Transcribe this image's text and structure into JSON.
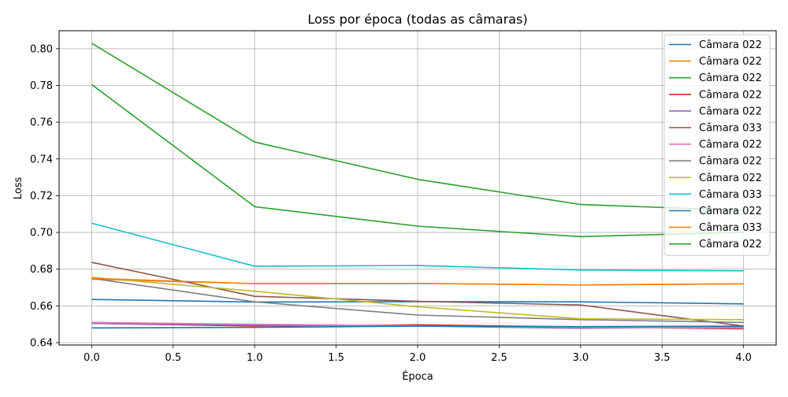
{
  "chart_data": {
    "type": "line",
    "title": "Loss por época (todas as câmaras)",
    "xlabel": "Época",
    "ylabel": "Loss",
    "xlim": [
      -0.2,
      4.2
    ],
    "ylim": [
      0.6387,
      0.8098
    ],
    "xticks": [
      0.0,
      0.5,
      1.0,
      1.5,
      2.0,
      2.5,
      3.0,
      3.5,
      4.0
    ],
    "xtick_labels": [
      "0.0",
      "0.5",
      "1.0",
      "1.5",
      "2.0",
      "2.5",
      "3.0",
      "3.5",
      "4.0"
    ],
    "yticks": [
      0.64,
      0.66,
      0.68,
      0.7,
      0.72,
      0.74,
      0.76,
      0.78,
      0.8
    ],
    "ytick_labels": [
      "0.64",
      "0.66",
      "0.68",
      "0.70",
      "0.72",
      "0.74",
      "0.76",
      "0.78",
      "0.80"
    ],
    "grid": true,
    "legend_position": "upper right",
    "x": [
      0,
      1,
      2,
      3,
      4
    ],
    "series": [
      {
        "name": "Câmara 022",
        "color": "#1f77b4",
        "values": [
          0.6635,
          0.6621,
          0.6623,
          0.6622,
          0.6611
        ]
      },
      {
        "name": "Câmara 022",
        "color": "#ff7f0e",
        "values": [
          0.6745,
          0.6721,
          0.6722,
          0.6714,
          0.672
        ]
      },
      {
        "name": "Câmara 022",
        "color": "#2ca02c",
        "values": [
          0.7805,
          0.714,
          0.7034,
          0.6977,
          0.7001
        ]
      },
      {
        "name": "Câmara 022",
        "color": "#d62728",
        "values": [
          0.6505,
          0.649,
          0.6497,
          0.6485,
          0.6475
        ]
      },
      {
        "name": "Câmara 022",
        "color": "#9467bd",
        "values": [
          0.6505,
          0.6495,
          0.649,
          0.6478,
          0.6485
        ]
      },
      {
        "name": "Câmara 033",
        "color": "#8c564b",
        "values": [
          0.6837,
          0.6652,
          0.6625,
          0.6605,
          0.649
        ]
      },
      {
        "name": "Câmara 022",
        "color": "#e377c2",
        "values": [
          0.651,
          0.65,
          0.6492,
          0.6482,
          0.648
        ]
      },
      {
        "name": "Câmara 022",
        "color": "#7f7f7f",
        "values": [
          0.675,
          0.6622,
          0.655,
          0.6525,
          0.651
        ]
      },
      {
        "name": "Câmara 022",
        "color": "#bcbd22",
        "values": [
          0.6755,
          0.668,
          0.6595,
          0.653,
          0.6525
        ]
      },
      {
        "name": "Câmara 033",
        "color": "#17becf",
        "values": [
          0.705,
          0.6816,
          0.682,
          0.6795,
          0.6791
        ]
      },
      {
        "name": "Câmara 022",
        "color": "#1f77b4",
        "values": [
          0.648,
          0.6483,
          0.649,
          0.6487,
          0.649
        ]
      },
      {
        "name": "Câmara 033",
        "color": "#ff7f0e",
        "values": [
          0.675,
          0.6721,
          0.6722,
          0.6714,
          0.672
        ]
      },
      {
        "name": "Câmara 022",
        "color": "#2ca02c",
        "values": [
          0.803,
          0.7492,
          0.7289,
          0.7152,
          0.712
        ]
      }
    ]
  }
}
